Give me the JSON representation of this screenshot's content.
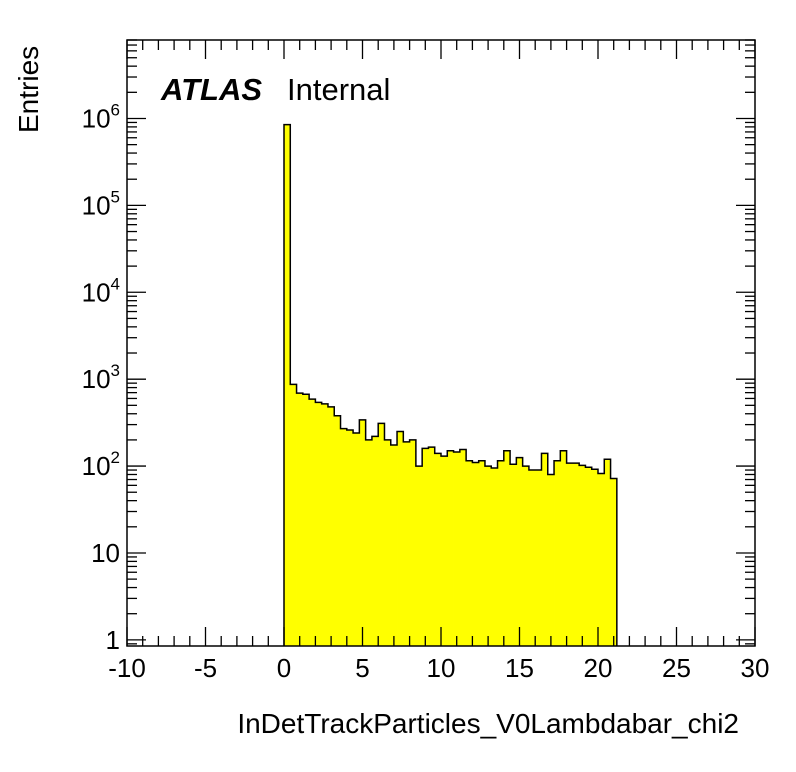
{
  "chart_data": {
    "type": "bar",
    "histogram": true,
    "title": "",
    "xlabel": "InDetTrackParticles_V0Lambdabar_chi2",
    "ylabel": "Entries",
    "xlim": [
      -10,
      30
    ],
    "ylim": [
      0.85,
      8000000
    ],
    "y_scale": "log",
    "grid": false,
    "legend": "none",
    "bar_color": "#ffff00",
    "edge_color": "#000000",
    "annotations": {
      "experiment": "ATLAS",
      "status": "Internal"
    },
    "x_ticks": [
      "-10",
      "-5",
      "0",
      "5",
      "10",
      "15",
      "20",
      "25",
      "30"
    ],
    "x_tick_values": [
      -10,
      -5,
      0,
      5,
      10,
      15,
      20,
      25,
      30
    ],
    "y_ticks": [
      {
        "value": 1,
        "base": "1",
        "exp": ""
      },
      {
        "value": 10,
        "base": "10",
        "exp": ""
      },
      {
        "value": 100,
        "base": "10",
        "exp": "2"
      },
      {
        "value": 1000,
        "base": "10",
        "exp": "3"
      },
      {
        "value": 10000,
        "base": "10",
        "exp": "4"
      },
      {
        "value": 100000,
        "base": "10",
        "exp": "5"
      },
      {
        "value": 1000000,
        "base": "10",
        "exp": "6"
      }
    ],
    "bin_edges_start": 0,
    "bin_width": 0.4,
    "values": [
      850000,
      870,
      690,
      670,
      590,
      540,
      520,
      480,
      380,
      270,
      260,
      240,
      340,
      200,
      220,
      310,
      200,
      175,
      250,
      190,
      200,
      100,
      160,
      165,
      140,
      130,
      150,
      145,
      155,
      115,
      110,
      115,
      100,
      95,
      115,
      150,
      105,
      125,
      100,
      90,
      90,
      140,
      80,
      115,
      150,
      108,
      108,
      102,
      97,
      92,
      82,
      120,
      72
    ]
  }
}
